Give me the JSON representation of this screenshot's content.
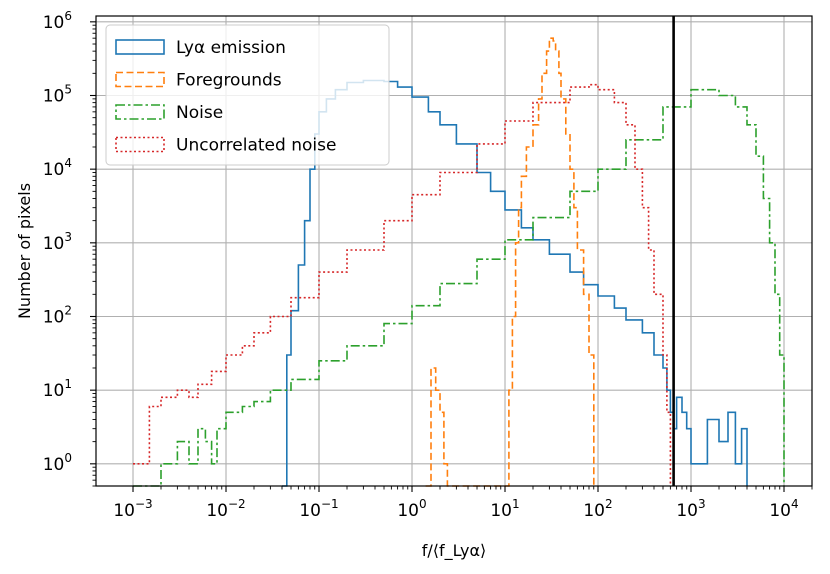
{
  "chart_data": {
    "type": "line",
    "xlabel": "f/⟨f_Lyα⟩",
    "ylabel": "Number of pixels",
    "x_scale": "log",
    "y_scale": "log",
    "xlim": [
      0.0004,
      20000
    ],
    "ylim": [
      0.5,
      1200000
    ],
    "x_ticks": [
      {
        "value": 0.001,
        "base": "10",
        "exp": "−3"
      },
      {
        "value": 0.01,
        "base": "10",
        "exp": "−2"
      },
      {
        "value": 0.1,
        "base": "10",
        "exp": "−1"
      },
      {
        "value": 1,
        "base": "10",
        "exp": "0"
      },
      {
        "value": 10,
        "base": "10",
        "exp": "1"
      },
      {
        "value": 100,
        "base": "10",
        "exp": "2"
      },
      {
        "value": 1000,
        "base": "10",
        "exp": "3"
      },
      {
        "value": 10000,
        "base": "10",
        "exp": "4"
      }
    ],
    "y_ticks": [
      {
        "value": 1,
        "base": "10",
        "exp": "0"
      },
      {
        "value": 10,
        "base": "10",
        "exp": "1"
      },
      {
        "value": 100,
        "base": "10",
        "exp": "2"
      },
      {
        "value": 1000,
        "base": "10",
        "exp": "3"
      },
      {
        "value": 10000,
        "base": "10",
        "exp": "4"
      },
      {
        "value": 100000,
        "base": "10",
        "exp": "5"
      },
      {
        "value": 1000000,
        "base": "10",
        "exp": "6"
      }
    ],
    "grid": true,
    "legend_position": "top-left",
    "vline": {
      "x": 650,
      "color": "#000000"
    },
    "series": [
      {
        "name": "Lyα emission",
        "color": "#1f77b4",
        "style": "solid",
        "x": [
          0.04,
          0.045,
          0.05,
          0.06,
          0.07,
          0.08,
          0.09,
          0.1,
          0.12,
          0.15,
          0.2,
          0.3,
          0.5,
          0.7,
          1,
          1.5,
          2,
          3,
          5,
          7,
          10,
          15,
          20,
          30,
          50,
          70,
          100,
          150,
          200,
          300,
          400,
          500,
          550,
          600,
          650,
          700,
          800,
          900,
          1000,
          1500,
          2000,
          2500,
          3000,
          3500,
          4000
        ],
        "values": [
          0.5,
          30,
          120,
          500,
          2000,
          10000,
          30000,
          60000,
          90000,
          120000,
          150000,
          160000,
          155000,
          130000,
          95000,
          60000,
          40000,
          22000,
          9000,
          5000,
          2800,
          1600,
          1100,
          700,
          400,
          270,
          190,
          130,
          90,
          60,
          30,
          20,
          10,
          5,
          3,
          8,
          5,
          3,
          1,
          4,
          2,
          5,
          1,
          3,
          0.5
        ]
      },
      {
        "name": "Foregrounds",
        "color": "#ff7f0e",
        "style": "dashed",
        "x": [
          1.4,
          1.6,
          1.8,
          2.0,
          2.2,
          2.4,
          2.6,
          10,
          11,
          12,
          13,
          14,
          15,
          17,
          20,
          23,
          25,
          28,
          30,
          33,
          35,
          38,
          40,
          45,
          50,
          55,
          60,
          70,
          80,
          90
        ],
        "values": [
          0.5,
          20,
          10,
          5,
          1,
          0.5,
          0.5,
          0.5,
          10,
          100,
          1000,
          3000,
          8000,
          20000,
          40000,
          90000,
          200000,
          400000,
          600000,
          550000,
          400000,
          200000,
          90000,
          30000,
          10000,
          3000,
          800,
          200,
          30,
          0.5
        ]
      },
      {
        "name": "Noise",
        "color": "#2ca02c",
        "style": "dashdot",
        "x": [
          0.001,
          0.002,
          0.003,
          0.004,
          0.005,
          0.006,
          0.007,
          0.008,
          0.01,
          0.015,
          0.02,
          0.03,
          0.05,
          0.1,
          0.2,
          0.5,
          1,
          2,
          5,
          10,
          20,
          50,
          100,
          200,
          500,
          1000,
          2000,
          3000,
          4000,
          5000,
          6000,
          7000,
          8000,
          9000,
          10000
        ],
        "values": [
          0.5,
          1,
          2,
          1,
          3,
          2,
          1,
          3,
          5,
          6,
          7,
          10,
          14,
          25,
          40,
          80,
          140,
          280,
          600,
          1100,
          2200,
          5000,
          10000,
          25000,
          70000,
          120000,
          100000,
          70000,
          40000,
          15000,
          4000,
          1000,
          200,
          30,
          0.5
        ]
      },
      {
        "name": "Uncorrelated noise",
        "color": "#d62728",
        "style": "dotted",
        "x": [
          0.001,
          0.0015,
          0.002,
          0.003,
          0.004,
          0.005,
          0.007,
          0.01,
          0.015,
          0.02,
          0.03,
          0.05,
          0.1,
          0.2,
          0.5,
          1,
          2,
          5,
          10,
          20,
          50,
          80,
          100,
          150,
          200,
          250,
          300,
          350,
          400,
          500,
          550,
          600
        ],
        "values": [
          1,
          6,
          8,
          10,
          8,
          12,
          18,
          30,
          40,
          60,
          100,
          180,
          400,
          800,
          2000,
          4500,
          9000,
          22000,
          45000,
          80000,
          130000,
          140000,
          120000,
          80000,
          40000,
          10000,
          3000,
          800,
          200,
          30,
          5,
          0.5
        ]
      }
    ]
  }
}
